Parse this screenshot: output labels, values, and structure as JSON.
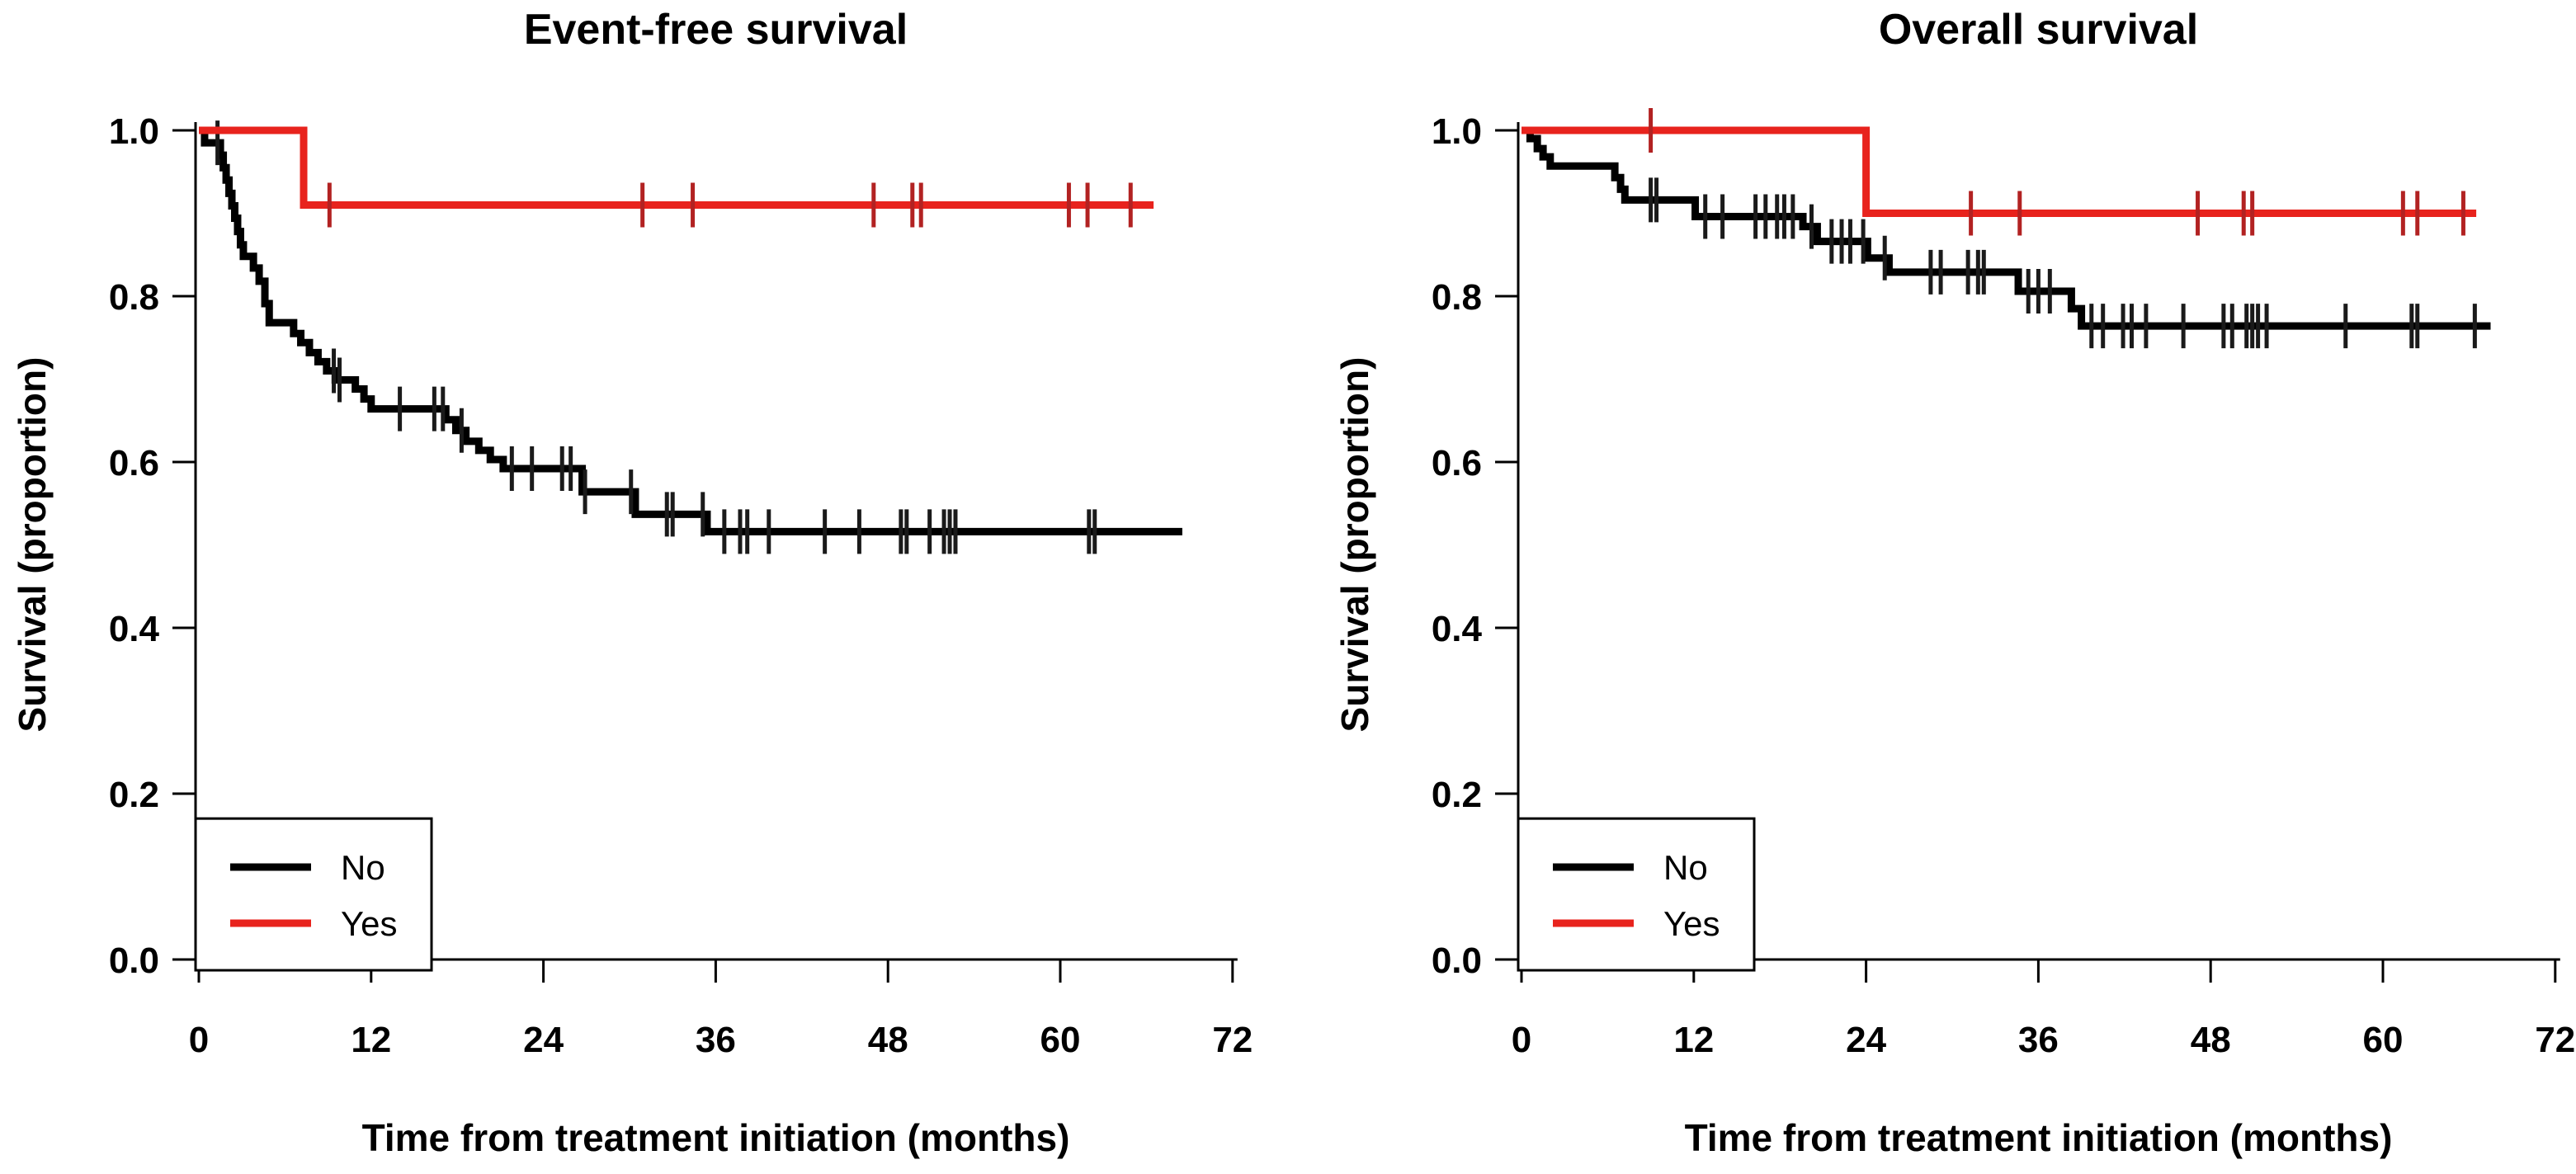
{
  "figure": {
    "background": "#ffffff",
    "axis_color": "#000000",
    "series_colors": {
      "no": "#000000",
      "yes": "#e8231d"
    }
  },
  "chart_data": [
    {
      "type": "line",
      "subtype": "kaplan-meier-step",
      "title": "Event-free survival",
      "xlabel": "Time from treatment initiation (months)",
      "ylabel": "Survival (proportion)",
      "xlim": [
        0,
        72
      ],
      "ylim": [
        0.0,
        1.0
      ],
      "xticks": [
        "0",
        "12",
        "24",
        "36",
        "48",
        "60",
        "72"
      ],
      "xtick_values": [
        0,
        12,
        24,
        36,
        48,
        60,
        72
      ],
      "yticks": [
        "0.0",
        "0.2",
        "0.4",
        "0.6",
        "0.8",
        "1.0"
      ],
      "ytick_values": [
        0.0,
        0.2,
        0.4,
        0.6,
        0.8,
        1.0
      ],
      "grid": false,
      "legend_position": "lower-left",
      "legend": [
        {
          "label": "No",
          "color": "#000000"
        },
        {
          "label": "Yes",
          "color": "#e8231d"
        }
      ],
      "series": [
        {
          "name": "No",
          "color": "#000000",
          "steps": [
            [
              0,
              1.0
            ],
            [
              0.4,
              0.985
            ],
            [
              1.5,
              0.97
            ],
            [
              1.7,
              0.955
            ],
            [
              1.9,
              0.94
            ],
            [
              2.1,
              0.924
            ],
            [
              2.3,
              0.909
            ],
            [
              2.5,
              0.894
            ],
            [
              2.7,
              0.878
            ],
            [
              2.9,
              0.862
            ],
            [
              3.1,
              0.848
            ],
            [
              3.8,
              0.834
            ],
            [
              4.2,
              0.818
            ],
            [
              4.6,
              0.791
            ],
            [
              4.9,
              0.768
            ],
            [
              6.6,
              0.755
            ],
            [
              7.1,
              0.744
            ],
            [
              7.7,
              0.732
            ],
            [
              8.3,
              0.721
            ],
            [
              8.9,
              0.71
            ],
            [
              9.5,
              0.699
            ],
            [
              10.9,
              0.688
            ],
            [
              11.5,
              0.676
            ],
            [
              12.0,
              0.664
            ],
            [
              17.2,
              0.651
            ],
            [
              17.9,
              0.638
            ],
            [
              18.6,
              0.625
            ],
            [
              19.5,
              0.614
            ],
            [
              20.3,
              0.603
            ],
            [
              21.2,
              0.592
            ],
            [
              26.7,
              0.564
            ],
            [
              30.4,
              0.537
            ],
            [
              35.4,
              0.516
            ]
          ],
          "end_time": 68.5,
          "censor_times": [
            1.3,
            9.4,
            9.8,
            14.0,
            16.4,
            17.0,
            18.3,
            21.8,
            23.2,
            25.3,
            25.9,
            26.9,
            30.1,
            32.6,
            33.0,
            35.1,
            36.6,
            37.7,
            38.2,
            39.7,
            43.6,
            46.0,
            48.9,
            49.3,
            50.9,
            51.9,
            52.3,
            52.7,
            62.0,
            62.4
          ]
        },
        {
          "name": "Yes",
          "color": "#e8231d",
          "steps": [
            [
              0,
              1.0
            ],
            [
              7.3,
              0.91
            ]
          ],
          "end_time": 66.5,
          "censor_times": [
            9.1,
            30.9,
            34.4,
            47.0,
            49.7,
            50.3,
            60.6,
            61.9,
            64.9
          ]
        }
      ]
    },
    {
      "type": "line",
      "subtype": "kaplan-meier-step",
      "title": "Overall survival",
      "xlabel": "Time from treatment initiation (months)",
      "ylabel": "Survival (proportion)",
      "xlim": [
        0,
        72
      ],
      "ylim": [
        0.0,
        1.0
      ],
      "xticks": [
        "0",
        "12",
        "24",
        "36",
        "48",
        "60",
        "72"
      ],
      "xtick_values": [
        0,
        12,
        24,
        36,
        48,
        60,
        72
      ],
      "yticks": [
        "0.0",
        "0.2",
        "0.4",
        "0.6",
        "0.8",
        "1.0"
      ],
      "ytick_values": [
        0.0,
        0.2,
        0.4,
        0.6,
        0.8,
        1.0
      ],
      "grid": false,
      "legend_position": "lower-left",
      "legend": [
        {
          "label": "No",
          "color": "#000000"
        },
        {
          "label": "Yes",
          "color": "#e8231d"
        }
      ],
      "series": [
        {
          "name": "No",
          "color": "#000000",
          "steps": [
            [
              0,
              1.0
            ],
            [
              0.6,
              0.99
            ],
            [
              1.1,
              0.978
            ],
            [
              1.5,
              0.968
            ],
            [
              2.0,
              0.957
            ],
            [
              6.5,
              0.943
            ],
            [
              6.9,
              0.929
            ],
            [
              7.2,
              0.916
            ],
            [
              12.1,
              0.896
            ],
            [
              19.6,
              0.884
            ],
            [
              20.6,
              0.866
            ],
            [
              24.1,
              0.846
            ],
            [
              25.6,
              0.829
            ],
            [
              34.6,
              0.806
            ],
            [
              38.3,
              0.785
            ],
            [
              39.0,
              0.764
            ]
          ],
          "end_time": 67.5,
          "censor_times": [
            9.0,
            9.4,
            12.8,
            14.0,
            16.3,
            17.0,
            17.8,
            18.3,
            18.9,
            20.2,
            21.6,
            22.3,
            22.9,
            23.8,
            25.3,
            28.5,
            29.2,
            31.1,
            31.8,
            32.2,
            35.3,
            36.0,
            36.8,
            39.7,
            40.5,
            41.9,
            42.5,
            43.5,
            46.1,
            48.9,
            49.5,
            50.5,
            50.9,
            51.3,
            51.9,
            57.4,
            62.0,
            62.4,
            66.4
          ]
        },
        {
          "name": "Yes",
          "color": "#e8231d",
          "steps": [
            [
              0,
              1.0
            ],
            [
              24.0,
              0.9
            ]
          ],
          "end_time": 66.5,
          "censor_times": [
            9.0,
            31.3,
            34.7,
            47.1,
            50.3,
            50.9,
            61.4,
            62.4,
            65.6
          ]
        }
      ]
    }
  ]
}
